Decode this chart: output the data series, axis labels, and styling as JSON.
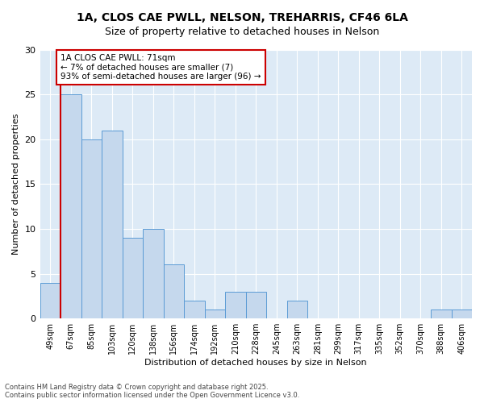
{
  "title_line1": "1A, CLOS CAE PWLL, NELSON, TREHARRIS, CF46 6LA",
  "title_line2": "Size of property relative to detached houses in Nelson",
  "xlabel": "Distribution of detached houses by size in Nelson",
  "ylabel": "Number of detached properties",
  "categories": [
    "49sqm",
    "67sqm",
    "85sqm",
    "103sqm",
    "120sqm",
    "138sqm",
    "156sqm",
    "174sqm",
    "192sqm",
    "210sqm",
    "228sqm",
    "245sqm",
    "263sqm",
    "281sqm",
    "299sqm",
    "317sqm",
    "335sqm",
    "352sqm",
    "370sqm",
    "388sqm",
    "406sqm"
  ],
  "values": [
    4,
    25,
    20,
    21,
    9,
    10,
    6,
    2,
    1,
    3,
    3,
    0,
    2,
    0,
    0,
    0,
    0,
    0,
    0,
    1,
    1
  ],
  "bar_color": "#c5d8ed",
  "bar_edge_color": "#5b9bd5",
  "highlight_line_color": "#cc0000",
  "highlight_line_index": 1,
  "annotation_text": "1A CLOS CAE PWLL: 71sqm\n← 7% of detached houses are smaller (7)\n93% of semi-detached houses are larger (96) →",
  "annotation_box_color": "#ffffff",
  "annotation_box_edge_color": "#cc0000",
  "ylim": [
    0,
    30
  ],
  "yticks": [
    0,
    5,
    10,
    15,
    20,
    25,
    30
  ],
  "footer_text": "Contains HM Land Registry data © Crown copyright and database right 2025.\nContains public sector information licensed under the Open Government Licence v3.0.",
  "bg_color": "#ddeaf6",
  "fig_bg_color": "#ffffff",
  "title_fontsize": 10,
  "subtitle_fontsize": 9,
  "ylabel_fontsize": 8,
  "xlabel_fontsize": 8,
  "tick_fontsize": 7,
  "annotation_fontsize": 7.5,
  "footer_fontsize": 6
}
